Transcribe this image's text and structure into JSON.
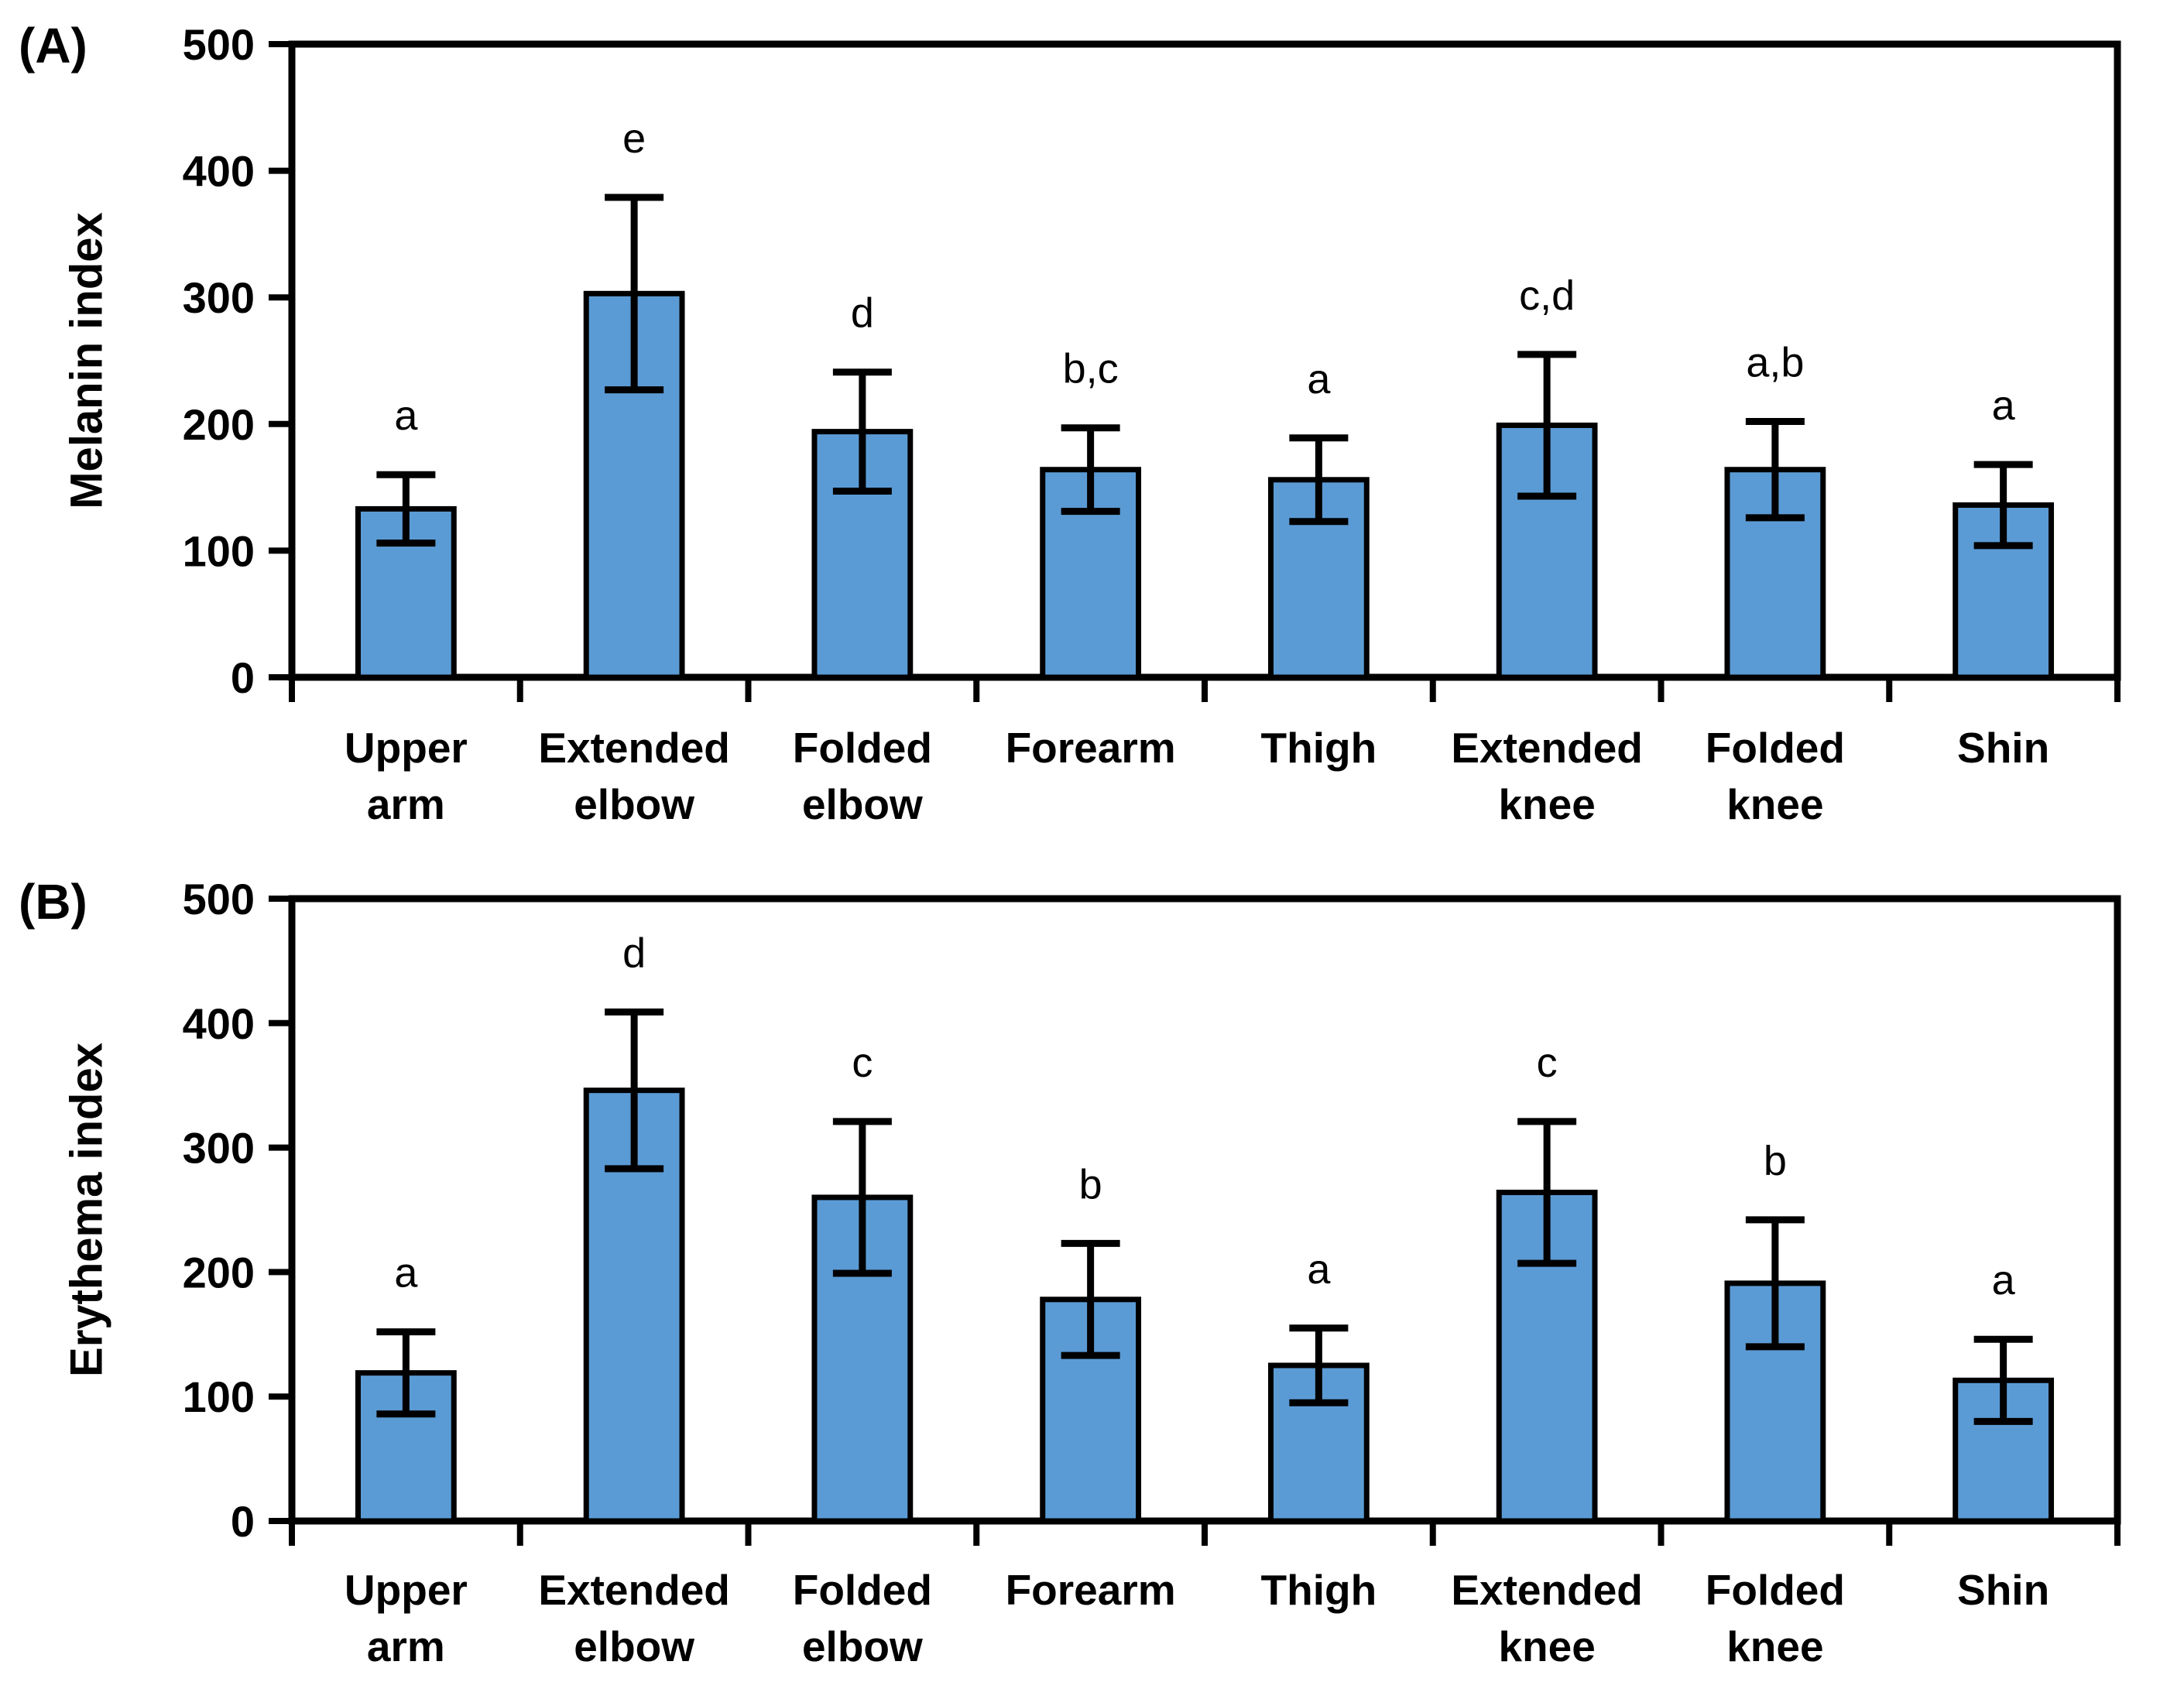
{
  "figure": {
    "background_color": "#FFFFFF",
    "axis_color": "#000000",
    "bar_fill_color": "#5B9BD5",
    "bar_edge_color": "#000000",
    "error_bar_color": "#000000"
  },
  "chart_data": [
    {
      "type": "bar",
      "panel": "(A)",
      "title": "",
      "xlabel": "",
      "ylabel": "Melanin index",
      "ylim": [
        0,
        500
      ],
      "yticks": [
        0,
        100,
        200,
        300,
        400,
        500
      ],
      "grid": false,
      "legend_position": "none",
      "categories": [
        "Upper arm",
        "Extended elbow",
        "Folded elbow",
        "Forearm",
        "Thigh",
        "Extended knee",
        "Folded knee",
        "Shin"
      ],
      "category_lines": [
        [
          "Upper",
          "arm"
        ],
        [
          "Extended",
          "elbow"
        ],
        [
          "Folded",
          "elbow"
        ],
        [
          "Forearm"
        ],
        [
          "Thigh"
        ],
        [
          "Extended",
          "knee"
        ],
        [
          "Folded",
          "knee"
        ],
        [
          "Shin"
        ]
      ],
      "values": [
        133,
        303,
        194,
        164,
        156,
        199,
        164,
        136
      ],
      "errors": [
        27,
        76,
        47,
        33,
        33,
        56,
        38,
        32
      ],
      "sig_letters": [
        "a",
        "e",
        "d",
        "b,c",
        "a",
        "c,d",
        "a,b",
        "a"
      ],
      "bar_color": "#5B9BD5"
    },
    {
      "type": "bar",
      "panel": "(B)",
      "title": "",
      "xlabel": "",
      "ylabel": "Erythema index",
      "ylim": [
        0,
        500
      ],
      "yticks": [
        0,
        100,
        200,
        300,
        400,
        500
      ],
      "grid": false,
      "legend_position": "none",
      "categories": [
        "Upper arm",
        "Extended elbow",
        "Folded elbow",
        "Forearm",
        "Thigh",
        "Extended knee",
        "Folded knee",
        "Shin"
      ],
      "category_lines": [
        [
          "Upper",
          "arm"
        ],
        [
          "Extended",
          "elbow"
        ],
        [
          "Folded",
          "elbow"
        ],
        [
          "Forearm"
        ],
        [
          "Thigh"
        ],
        [
          "Extended",
          "knee"
        ],
        [
          "Folded",
          "knee"
        ],
        [
          "Shin"
        ]
      ],
      "values": [
        119,
        346,
        260,
        178,
        125,
        264,
        191,
        113
      ],
      "errors": [
        33,
        63,
        61,
        45,
        30,
        57,
        51,
        33
      ],
      "sig_letters": [
        "a",
        "d",
        "c",
        "b",
        "a",
        "c",
        "b",
        "a"
      ],
      "bar_color": "#5B9BD5"
    }
  ]
}
